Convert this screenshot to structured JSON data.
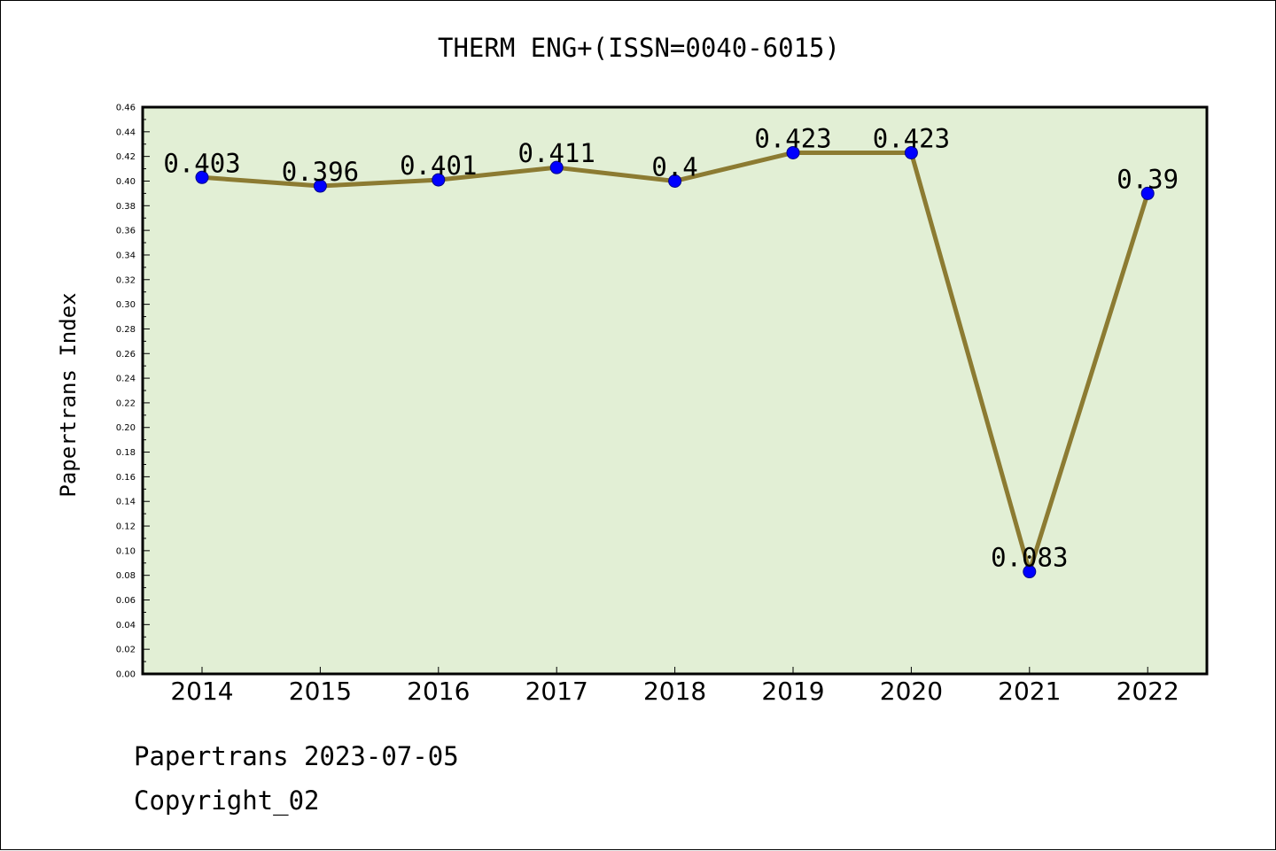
{
  "chart_data": {
    "type": "line",
    "title": "THERM ENG+(ISSN=0040-6015)",
    "xlabel": "",
    "ylabel": "Papertrans Index",
    "categories": [
      "2014",
      "2015",
      "2016",
      "2017",
      "2018",
      "2019",
      "2020",
      "2021",
      "2022"
    ],
    "series": [
      {
        "values": [
          0.403,
          0.396,
          0.401,
          0.411,
          0.4,
          0.423,
          0.423,
          0.083,
          0.39
        ],
        "data_labels": [
          "0.403",
          "0.396",
          "0.401",
          "0.411",
          "0.4",
          "0.423",
          "0.423",
          "0.083",
          "0.39"
        ],
        "line_color": "#8c7b32",
        "marker_color": "#0000ff"
      }
    ],
    "ylim": [
      0,
      0.46
    ],
    "yticks": [
      "0.00",
      "0.02",
      "0.04",
      "0.06",
      "0.08",
      "0.10",
      "0.12",
      "0.14",
      "0.16",
      "0.18",
      "0.20",
      "0.22",
      "0.24",
      "0.26",
      "0.28",
      "0.30",
      "0.32",
      "0.34",
      "0.36",
      "0.38",
      "0.40",
      "0.42",
      "0.44",
      "0.46"
    ],
    "grid": false,
    "plot_background": "#e2efd5"
  },
  "footer": {
    "date_line": "Papertrans 2023-07-05",
    "copyright_line": "Copyright_02"
  }
}
